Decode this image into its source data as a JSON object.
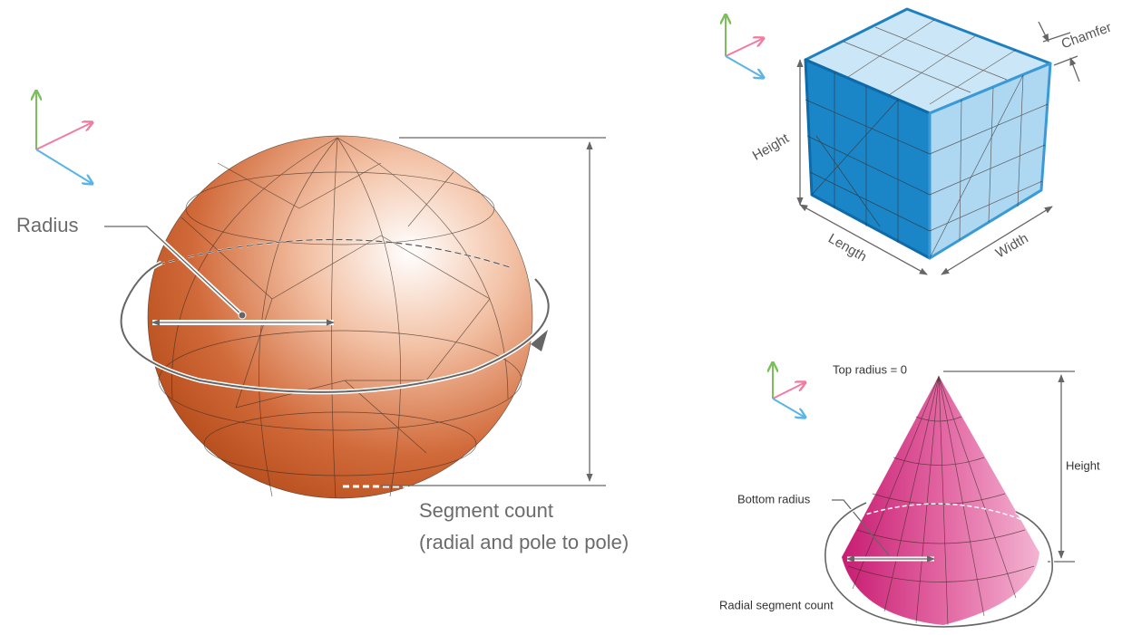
{
  "sphere": {
    "radius_label": "Radius",
    "segment_label": "Segment count",
    "segment_note": "(radial and pole to pole)"
  },
  "box": {
    "chamfer_label": "Chamfer",
    "height_label": "Height",
    "length_label": "Length",
    "width_label": "Width"
  },
  "cone": {
    "top_radius_label": "Top radius = 0",
    "height_label": "Height",
    "bottom_radius_label": "Bottom radius",
    "segment_label": "Radial segment count"
  }
}
